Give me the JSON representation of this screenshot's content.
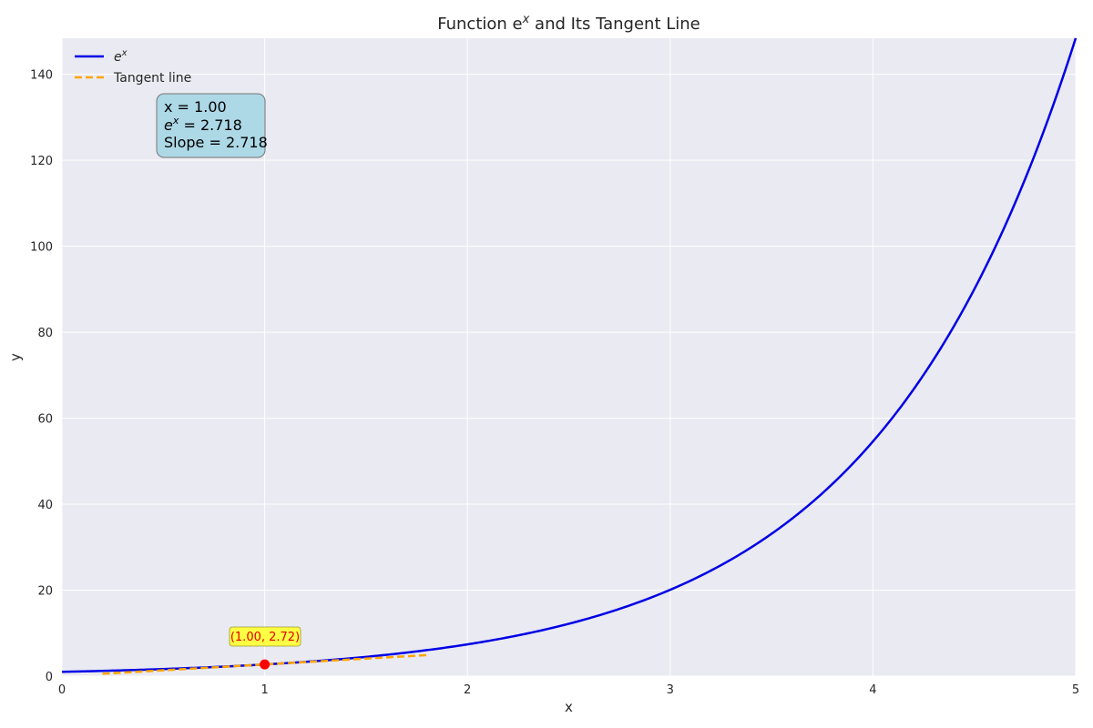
{
  "chart_data": {
    "type": "line",
    "title": "Function e",
    "title_sup": "x",
    "title_suffix": " and Its Tangent Line",
    "xlabel": "x",
    "ylabel": "y",
    "xlim": [
      0,
      5
    ],
    "ylim": [
      0,
      148.4
    ],
    "xticks": [
      "0",
      "1",
      "2",
      "3",
      "4",
      "5"
    ],
    "yticks": [
      "0",
      "20",
      "40",
      "60",
      "80",
      "100",
      "120",
      "140"
    ],
    "xtick_values": [
      0,
      1,
      2,
      3,
      4,
      5
    ],
    "ytick_values": [
      0,
      20,
      40,
      60,
      80,
      100,
      120,
      140
    ],
    "grid": true,
    "legend_position": "top-left",
    "series": [
      {
        "name": "e",
        "name_sup": "x",
        "style": "solid",
        "color": "#0000e6",
        "function": "exp",
        "x_range": [
          0,
          5
        ],
        "sample_points": [
          [
            0,
            1.0
          ],
          [
            1,
            2.718
          ],
          [
            2,
            7.389
          ],
          [
            3,
            20.09
          ],
          [
            4,
            54.6
          ],
          [
            5,
            148.41
          ]
        ]
      },
      {
        "name": "Tangent line",
        "style": "dashed",
        "color": "#ffa500",
        "points": [
          [
            0.2,
            0.543
          ],
          [
            1.8,
            4.893
          ]
        ]
      }
    ],
    "highlight_point": {
      "x": 1.0,
      "y": 2.718,
      "color": "#ff0000",
      "label": "(1.00, 2.72)",
      "label_color": "#e00000",
      "label_bg": "#ffff44"
    },
    "info_box": {
      "line1": "x = 1.00",
      "line2_base": "e",
      "line2_sup": "x",
      "line2_rest": " = 2.718",
      "line3": "Slope = 2.718",
      "bg": "#add8e6"
    },
    "colors": {
      "plot_bg": "#eaeaf2",
      "grid": "#ffffff"
    }
  }
}
